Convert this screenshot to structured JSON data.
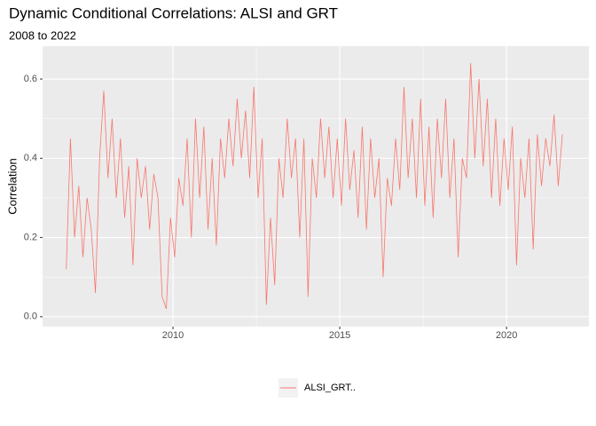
{
  "chart_data": {
    "type": "line",
    "title": "Dynamic Conditional Correlations: ALSI and GRT",
    "subtitle": "2008 to 2022",
    "y_label": "Correlation",
    "x": [
      2006.8,
      2006.925,
      2007.05,
      2007.175,
      2007.3,
      2007.425,
      2007.55,
      2007.675,
      2007.8,
      2007.925,
      2008.05,
      2008.175,
      2008.3,
      2008.425,
      2008.55,
      2008.675,
      2008.8,
      2008.925,
      2009.05,
      2009.175,
      2009.3,
      2009.425,
      2009.55,
      2009.675,
      2009.8,
      2009.925,
      2010.05,
      2010.175,
      2010.3,
      2010.425,
      2010.55,
      2010.675,
      2010.8,
      2010.925,
      2011.05,
      2011.175,
      2011.3,
      2011.425,
      2011.55,
      2011.675,
      2011.8,
      2011.925,
      2012.05,
      2012.175,
      2012.3,
      2012.425,
      2012.55,
      2012.675,
      2012.8,
      2012.925,
      2013.05,
      2013.175,
      2013.3,
      2013.425,
      2013.55,
      2013.675,
      2013.8,
      2013.925,
      2014.05,
      2014.175,
      2014.3,
      2014.425,
      2014.55,
      2014.675,
      2014.8,
      2014.925,
      2015.05,
      2015.175,
      2015.3,
      2015.425,
      2015.55,
      2015.675,
      2015.8,
      2015.925,
      2016.05,
      2016.175,
      2016.3,
      2016.425,
      2016.55,
      2016.675,
      2016.8,
      2016.925,
      2017.05,
      2017.175,
      2017.3,
      2017.425,
      2017.55,
      2017.675,
      2017.8,
      2017.925,
      2018.05,
      2018.175,
      2018.3,
      2018.425,
      2018.55,
      2018.675,
      2018.8,
      2018.925,
      2019.05,
      2019.175,
      2019.3,
      2019.425,
      2019.55,
      2019.675,
      2019.8,
      2019.925,
      2020.05,
      2020.175,
      2020.3,
      2020.425,
      2020.55,
      2020.675,
      2020.8,
      2020.925,
      2021.05,
      2021.175,
      2021.3,
      2021.425,
      2021.55,
      2021.675
    ],
    "series": [
      {
        "name": "ALSI_GRT..",
        "color": "#F8766D",
        "values": [
          0.12,
          0.45,
          0.2,
          0.33,
          0.15,
          0.3,
          0.22,
          0.06,
          0.4,
          0.57,
          0.35,
          0.5,
          0.3,
          0.45,
          0.25,
          0.38,
          0.13,
          0.4,
          0.3,
          0.38,
          0.22,
          0.36,
          0.3,
          0.05,
          0.02,
          0.25,
          0.15,
          0.35,
          0.28,
          0.45,
          0.2,
          0.5,
          0.3,
          0.48,
          0.22,
          0.4,
          0.18,
          0.45,
          0.35,
          0.5,
          0.38,
          0.55,
          0.4,
          0.52,
          0.35,
          0.58,
          0.3,
          0.45,
          0.03,
          0.25,
          0.08,
          0.4,
          0.3,
          0.5,
          0.35,
          0.45,
          0.2,
          0.45,
          0.05,
          0.4,
          0.3,
          0.5,
          0.35,
          0.48,
          0.3,
          0.45,
          0.28,
          0.5,
          0.32,
          0.42,
          0.25,
          0.48,
          0.22,
          0.45,
          0.3,
          0.4,
          0.1,
          0.35,
          0.28,
          0.45,
          0.32,
          0.58,
          0.35,
          0.5,
          0.3,
          0.55,
          0.28,
          0.48,
          0.25,
          0.5,
          0.35,
          0.55,
          0.3,
          0.45,
          0.15,
          0.4,
          0.35,
          0.64,
          0.4,
          0.6,
          0.38,
          0.55,
          0.3,
          0.5,
          0.28,
          0.45,
          0.32,
          0.48,
          0.13,
          0.4,
          0.3,
          0.45,
          0.17,
          0.46,
          0.33,
          0.45,
          0.38,
          0.51,
          0.33,
          0.46
        ]
      }
    ],
    "xlim": [
      2006.09,
      2022.47
    ],
    "ylim": [
      -0.025,
      0.683
    ],
    "xticks": [
      2010,
      2015,
      2020
    ],
    "yticks": [
      {
        "value": 0,
        "label": "0.0"
      },
      0.2,
      0.4,
      0.6
    ],
    "grid": true,
    "legend": "bottom"
  }
}
